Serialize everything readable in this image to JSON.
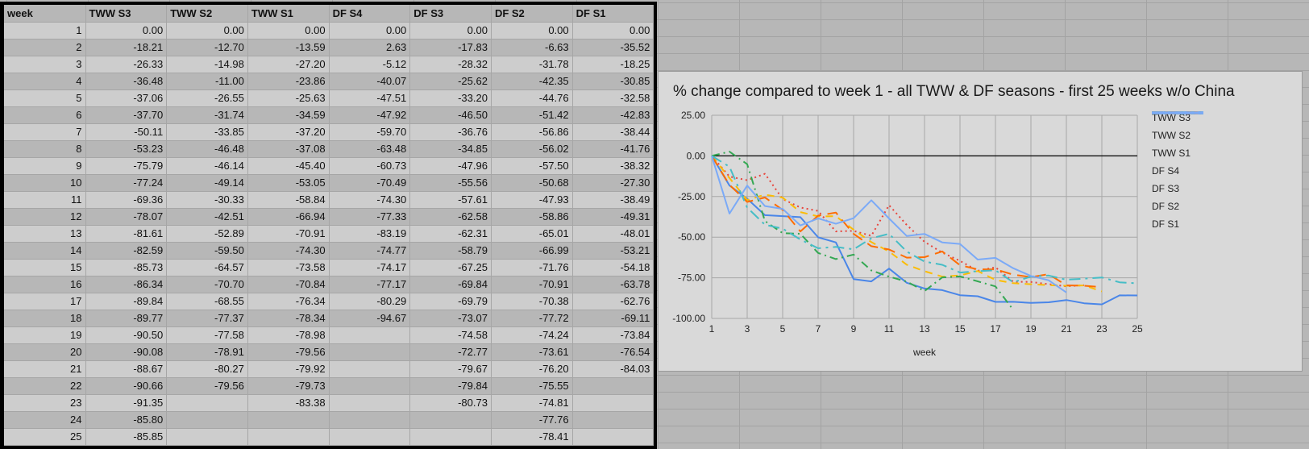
{
  "sheet": {
    "headers": [
      "week",
      "TWW S3",
      "TWW S2",
      "TWW S1",
      "DF S4",
      "DF S3",
      "DF S2",
      "DF S1"
    ],
    "rows": [
      [
        "1",
        "0.00",
        "0.00",
        "0.00",
        "0.00",
        "0.00",
        "0.00",
        "0.00"
      ],
      [
        "2",
        "-18.21",
        "-12.70",
        "-13.59",
        "2.63",
        "-17.83",
        "-6.63",
        "-35.52"
      ],
      [
        "3",
        "-26.33",
        "-14.98",
        "-27.20",
        "-5.12",
        "-28.32",
        "-31.78",
        "-18.25"
      ],
      [
        "4",
        "-36.48",
        "-11.00",
        "-23.86",
        "-40.07",
        "-25.62",
        "-42.35",
        "-30.85"
      ],
      [
        "5",
        "-37.06",
        "-26.55",
        "-25.63",
        "-47.51",
        "-33.20",
        "-44.76",
        "-32.58"
      ],
      [
        "6",
        "-37.70",
        "-31.74",
        "-34.59",
        "-47.92",
        "-46.50",
        "-51.42",
        "-42.83"
      ],
      [
        "7",
        "-50.11",
        "-33.85",
        "-37.20",
        "-59.70",
        "-36.76",
        "-56.86",
        "-38.44"
      ],
      [
        "8",
        "-53.23",
        "-46.48",
        "-37.08",
        "-63.48",
        "-34.85",
        "-56.02",
        "-41.76"
      ],
      [
        "9",
        "-75.79",
        "-46.14",
        "-45.40",
        "-60.73",
        "-47.96",
        "-57.50",
        "-38.32"
      ],
      [
        "10",
        "-77.24",
        "-49.14",
        "-53.05",
        "-70.49",
        "-55.56",
        "-50.68",
        "-27.30"
      ],
      [
        "11",
        "-69.36",
        "-30.33",
        "-58.84",
        "-74.30",
        "-57.61",
        "-47.93",
        "-38.49"
      ],
      [
        "12",
        "-78.07",
        "-42.51",
        "-66.94",
        "-77.33",
        "-62.58",
        "-58.86",
        "-49.31"
      ],
      [
        "13",
        "-81.61",
        "-52.89",
        "-70.91",
        "-83.19",
        "-62.31",
        "-65.01",
        "-48.01"
      ],
      [
        "14",
        "-82.59",
        "-59.50",
        "-74.30",
        "-74.77",
        "-58.79",
        "-66.99",
        "-53.21"
      ],
      [
        "15",
        "-85.73",
        "-64.57",
        "-73.58",
        "-74.17",
        "-67.25",
        "-71.76",
        "-54.18"
      ],
      [
        "16",
        "-86.34",
        "-70.70",
        "-70.84",
        "-77.17",
        "-69.84",
        "-70.91",
        "-63.78"
      ],
      [
        "17",
        "-89.84",
        "-68.55",
        "-76.34",
        "-80.29",
        "-69.79",
        "-70.38",
        "-62.76"
      ],
      [
        "18",
        "-89.77",
        "-77.37",
        "-78.34",
        "-94.67",
        "-73.07",
        "-77.72",
        "-69.11"
      ],
      [
        "19",
        "-90.50",
        "-77.58",
        "-78.98",
        "",
        "-74.58",
        "-74.24",
        "-73.84"
      ],
      [
        "20",
        "-90.08",
        "-78.91",
        "-79.56",
        "",
        "-72.77",
        "-73.61",
        "-76.54"
      ],
      [
        "21",
        "-88.67",
        "-80.27",
        "-79.92",
        "",
        "-79.67",
        "-76.20",
        "-84.03"
      ],
      [
        "22",
        "-90.66",
        "-79.56",
        "-79.73",
        "",
        "-79.84",
        "-75.55",
        ""
      ],
      [
        "23",
        "-91.35",
        "",
        "-83.38",
        "",
        "-80.73",
        "-74.81",
        ""
      ],
      [
        "24",
        "-85.80",
        "",
        "",
        "",
        "",
        "-77.76",
        ""
      ],
      [
        "25",
        "-85.85",
        "",
        "",
        "",
        "",
        "-78.41",
        ""
      ]
    ]
  },
  "chart_data": {
    "type": "line",
    "title": "% change compared to week 1 - all TWW & DF seasons - first 25 weeks w/o China",
    "xlabel": "week",
    "ylabel": "",
    "x": [
      1,
      2,
      3,
      4,
      5,
      6,
      7,
      8,
      9,
      10,
      11,
      12,
      13,
      14,
      15,
      16,
      17,
      18,
      19,
      20,
      21,
      22,
      23,
      24,
      25
    ],
    "xticks": [
      "1",
      "3",
      "5",
      "7",
      "9",
      "11",
      "13",
      "15",
      "17",
      "19",
      "21",
      "23",
      "25"
    ],
    "yticks": [
      "25.00",
      "0.00",
      "-25.00",
      "-50.00",
      "-75.00",
      "-100.00"
    ],
    "ylim": [
      -100,
      25
    ],
    "xlim": [
      1,
      25
    ],
    "grid": true,
    "legend_position": "right",
    "series": [
      {
        "name": "TWW S3",
        "color": "#4a86e8",
        "dash": "solid",
        "width": 3,
        "values": [
          0,
          -18.21,
          -26.33,
          -36.48,
          -37.06,
          -37.7,
          -50.11,
          -53.23,
          -75.79,
          -77.24,
          -69.36,
          -78.07,
          -81.61,
          -82.59,
          -85.73,
          -86.34,
          -89.84,
          -89.77,
          -90.5,
          -90.08,
          -88.67,
          -90.66,
          -91.35,
          -85.8,
          -85.85
        ]
      },
      {
        "name": "TWW S2",
        "color": "#e8453c",
        "dash": "dot",
        "width": 3,
        "values": [
          0,
          -12.7,
          -14.98,
          -11.0,
          -26.55,
          -31.74,
          -33.85,
          -46.48,
          -46.14,
          -49.14,
          -30.33,
          -42.51,
          -52.89,
          -59.5,
          -64.57,
          -70.7,
          -68.55,
          -77.37,
          -77.58,
          -78.91,
          -80.27,
          -79.56,
          null,
          null,
          null
        ]
      },
      {
        "name": "TWW S1",
        "color": "#fbbc04",
        "dash": "dash",
        "width": 3,
        "values": [
          0,
          -13.59,
          -27.2,
          -23.86,
          -25.63,
          -34.59,
          -37.2,
          -37.08,
          -45.4,
          -53.05,
          -58.84,
          -66.94,
          -70.91,
          -74.3,
          -73.58,
          -70.84,
          -76.34,
          -78.34,
          -78.98,
          -79.56,
          -79.92,
          -79.73,
          -83.38,
          null,
          null
        ]
      },
      {
        "name": "DF S4",
        "color": "#34a853",
        "dash": "dashdot",
        "width": 3,
        "values": [
          0,
          2.63,
          -5.12,
          -40.07,
          -47.51,
          -47.92,
          -59.7,
          -63.48,
          -60.73,
          -70.49,
          -74.3,
          -77.33,
          -83.19,
          -74.77,
          -74.17,
          -77.17,
          -80.29,
          -94.67,
          null,
          null,
          null,
          null,
          null,
          null,
          null
        ]
      },
      {
        "name": "DF S3",
        "color": "#ff6d01",
        "dash": "longdash",
        "width": 3,
        "values": [
          0,
          -17.83,
          -28.32,
          -25.62,
          -33.2,
          -46.5,
          -36.76,
          -34.85,
          -47.96,
          -55.56,
          -57.61,
          -62.58,
          -62.31,
          -58.79,
          -67.25,
          -69.84,
          -69.79,
          -73.07,
          -74.58,
          -72.77,
          -79.67,
          -79.84,
          -80.73,
          null,
          null
        ]
      },
      {
        "name": "DF S2",
        "color": "#46bdc6",
        "dash": "longdashdot",
        "width": 3,
        "values": [
          0,
          -6.63,
          -31.78,
          -42.35,
          -44.76,
          -51.42,
          -56.86,
          -56.02,
          -57.5,
          -50.68,
          -47.93,
          -58.86,
          -65.01,
          -66.99,
          -71.76,
          -70.91,
          -70.38,
          -77.72,
          -74.24,
          -73.61,
          -76.2,
          -75.55,
          -74.81,
          -77.76,
          -78.41
        ]
      },
      {
        "name": "DF S1",
        "color": "#7baaf7",
        "dash": "solid",
        "width": 3,
        "values": [
          0,
          -35.52,
          -18.25,
          -30.85,
          -32.58,
          -42.83,
          -38.44,
          -41.76,
          -38.32,
          -27.3,
          -38.49,
          -49.31,
          -48.01,
          -53.21,
          -54.18,
          -63.78,
          -62.76,
          -69.11,
          -73.84,
          -76.54,
          -84.03,
          null,
          null,
          null,
          null
        ]
      }
    ]
  }
}
